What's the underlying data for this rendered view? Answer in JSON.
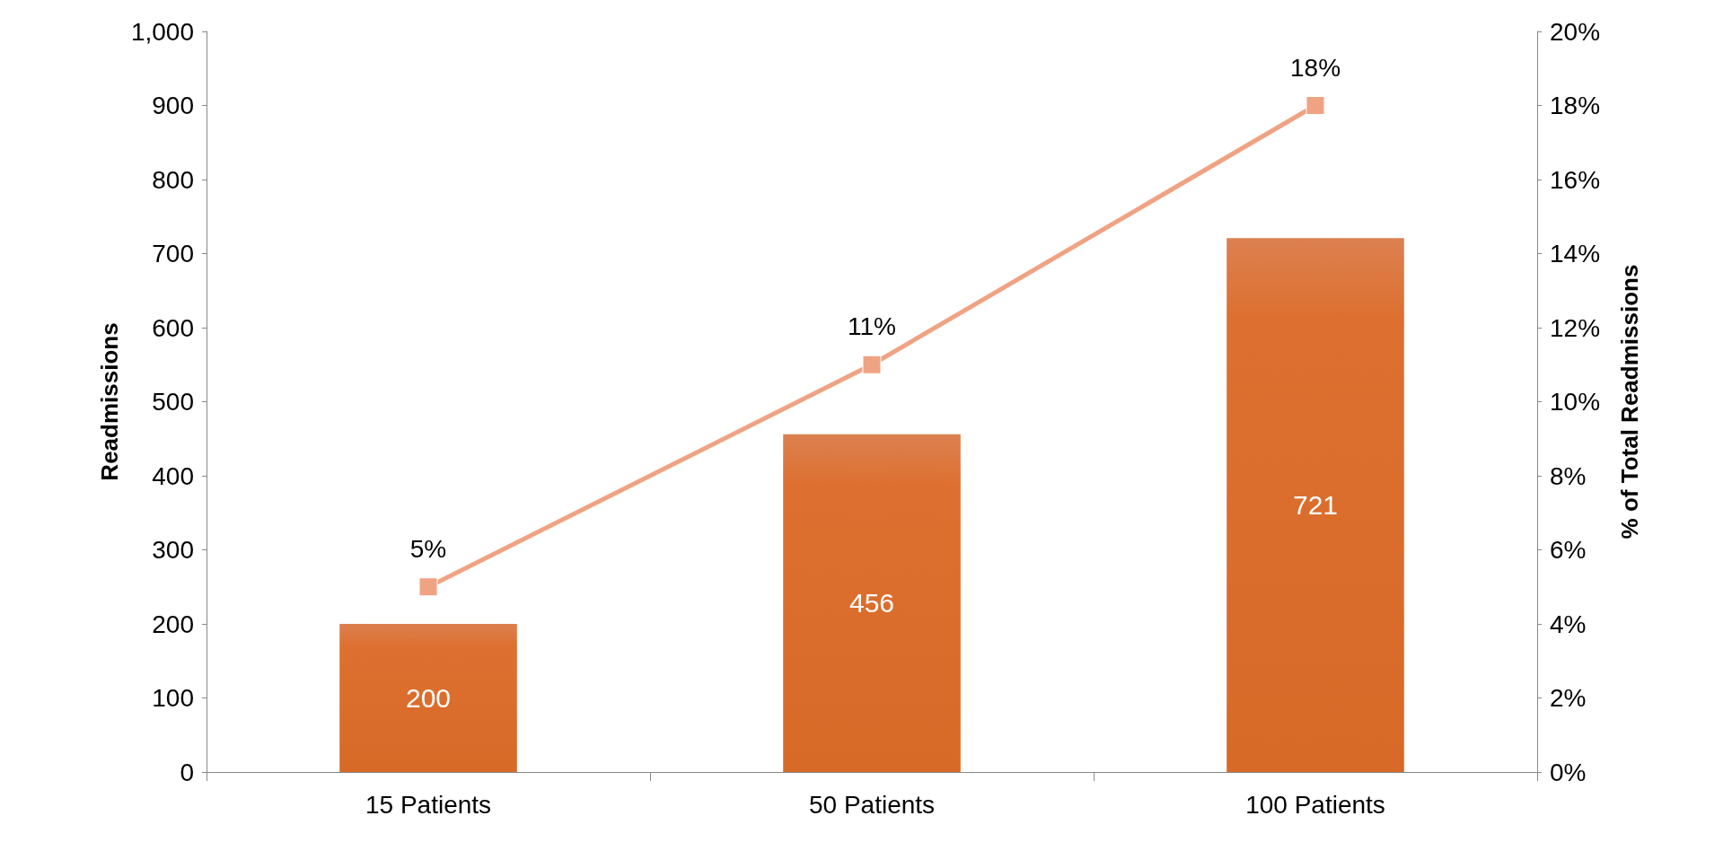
{
  "chart_data": {
    "type": "bar",
    "ylabel": "Readmissions",
    "y2label": "% of Total Readmissions",
    "categories": [
      "15 Patients",
      "50 Patients",
      "100 Patients"
    ],
    "series": [
      {
        "color": "#d86a28",
        "values": [
          200,
          456,
          721
        ],
        "value_labels": [
          "200",
          "456",
          "721"
        ]
      },
      {
        "type": "line",
        "axis": "y2",
        "color": "#f0a383",
        "values": [
          5,
          11,
          18
        ],
        "value_labels": [
          "5%",
          "11%",
          "18%"
        ],
        "marker": "square"
      }
    ],
    "ylim": [
      0,
      1000
    ],
    "yticks": [
      0,
      100,
      200,
      300,
      400,
      500,
      600,
      700,
      800,
      900,
      {
        "value": 1000,
        "label": "1,000"
      }
    ],
    "y2lim": [
      0,
      20
    ],
    "y2ticks": [
      {
        "value": 0,
        "label": "0%"
      },
      {
        "value": 2,
        "label": "2%"
      },
      {
        "value": 4,
        "label": "4%"
      },
      {
        "value": 6,
        "label": "6%"
      },
      {
        "value": 8,
        "label": "8%"
      },
      {
        "value": 10,
        "label": "10%"
      },
      {
        "value": 12,
        "label": "12%"
      },
      {
        "value": 14,
        "label": "14%"
      },
      {
        "value": 16,
        "label": "16%"
      },
      {
        "value": 18,
        "label": "18%"
      },
      {
        "value": 20,
        "label": "20%"
      }
    ],
    "grid": false
  }
}
